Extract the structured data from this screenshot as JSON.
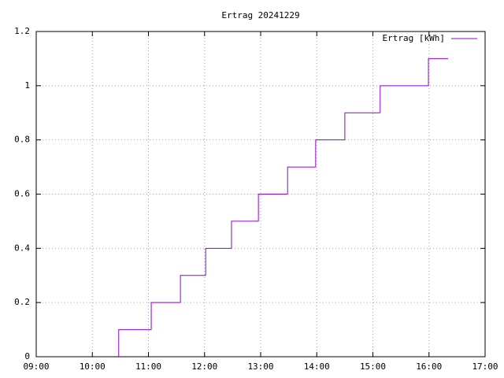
{
  "chart_data": {
    "type": "line",
    "step": true,
    "title": "Ertrag 20241229",
    "x": [
      10.47,
      10.47,
      11.05,
      11.57,
      12.02,
      12.48,
      12.96,
      13.48,
      13.98,
      14.5,
      15.13,
      15.99,
      16.34
    ],
    "series": [
      {
        "name": "Ertrag [kWh]",
        "color": "#9400d3",
        "values": [
          0,
          0.1,
          0.2,
          0.3,
          0.4,
          0.5,
          0.6,
          0.7,
          0.8,
          0.9,
          1,
          1.1,
          1.1
        ]
      }
    ],
    "xlim": [
      9,
      17
    ],
    "xticks": [
      {
        "value": 9,
        "label": "09:00"
      },
      {
        "value": 10,
        "label": "10:00"
      },
      {
        "value": 11,
        "label": "11:00"
      },
      {
        "value": 12,
        "label": "12:00"
      },
      {
        "value": 13,
        "label": "13:00"
      },
      {
        "value": 14,
        "label": "14:00"
      },
      {
        "value": 15,
        "label": "15:00"
      },
      {
        "value": 16,
        "label": "16:00"
      },
      {
        "value": 17,
        "label": "17:00"
      }
    ],
    "ylim": [
      0,
      1.2
    ],
    "yticks": [
      0,
      0.2,
      0.4,
      0.6,
      0.8,
      1,
      1.2
    ],
    "grid": true,
    "legend": "top-right"
  }
}
